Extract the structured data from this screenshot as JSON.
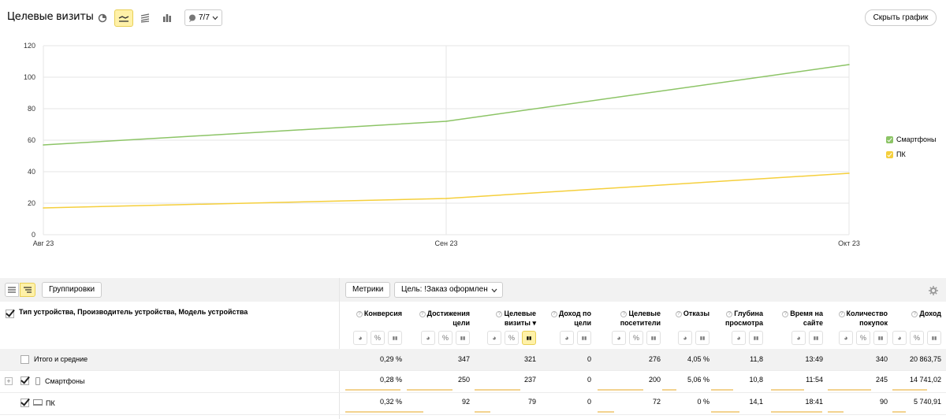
{
  "header": {
    "title": "Целевые визиты",
    "counter_label": "7/7",
    "hide_chart_label": "Скрыть график"
  },
  "chart_data": {
    "type": "line",
    "x": [
      "Авг 23",
      "Сен 23",
      "Окт 23"
    ],
    "series": [
      {
        "name": "Смартфоны",
        "color": "#8cc466",
        "values": [
          57,
          72,
          108
        ]
      },
      {
        "name": "ПК",
        "color": "#f5cf3c",
        "values": [
          17,
          23,
          39
        ]
      }
    ],
    "yticks": [
      "0",
      "20",
      "40",
      "60",
      "80",
      "100",
      "120"
    ],
    "ylim": [
      0,
      120
    ],
    "grid": true,
    "legend_position": "right"
  },
  "table_toolbar": {
    "groupings_label": "Группировки",
    "metrics_label": "Метрики",
    "goal_label": "Цель: !Заказ оформлен"
  },
  "table": {
    "dimension_header": "Тип устройства, Производитель устройства, Модель устройства",
    "columns": [
      {
        "label": "Конверсия"
      },
      {
        "label": "Достижения цели"
      },
      {
        "label": "Целевые визиты ▾"
      },
      {
        "label": "Доход по цели"
      },
      {
        "label": "Целевые посетители"
      },
      {
        "label": "Отказы"
      },
      {
        "label": "Глубина просмотра"
      },
      {
        "label": "Время на сайте"
      },
      {
        "label": "Количество покупок"
      },
      {
        "label": "Доход"
      }
    ],
    "rows": [
      {
        "label": "Итого и средние",
        "values": [
          "0,29 %",
          "347",
          "321",
          "0",
          "276",
          "4,05 %",
          "11,8",
          "13:49",
          "340",
          "20 863,75"
        ],
        "bars": [
          0,
          0,
          0,
          0,
          0,
          0,
          0,
          0,
          0,
          0
        ]
      },
      {
        "label": "Смартфоны",
        "values": [
          "0,28 %",
          "250",
          "237",
          "0",
          "200",
          "5,06 %",
          "10,8",
          "11:54",
          "245",
          "14 741,02"
        ],
        "bars": [
          0.97,
          0.72,
          0.74,
          0,
          0.72,
          0.3,
          0.42,
          0.63,
          0.72,
          0.71
        ]
      },
      {
        "label": "ПК",
        "values": [
          "0,32 %",
          "92",
          "79",
          "0",
          "72",
          "0 %",
          "14,1",
          "18:41",
          "90",
          "5 740,91"
        ],
        "bars": [
          1.1,
          0.26,
          0.25,
          0,
          0.26,
          0,
          0.55,
          0.98,
          0.26,
          0.28
        ]
      }
    ]
  }
}
